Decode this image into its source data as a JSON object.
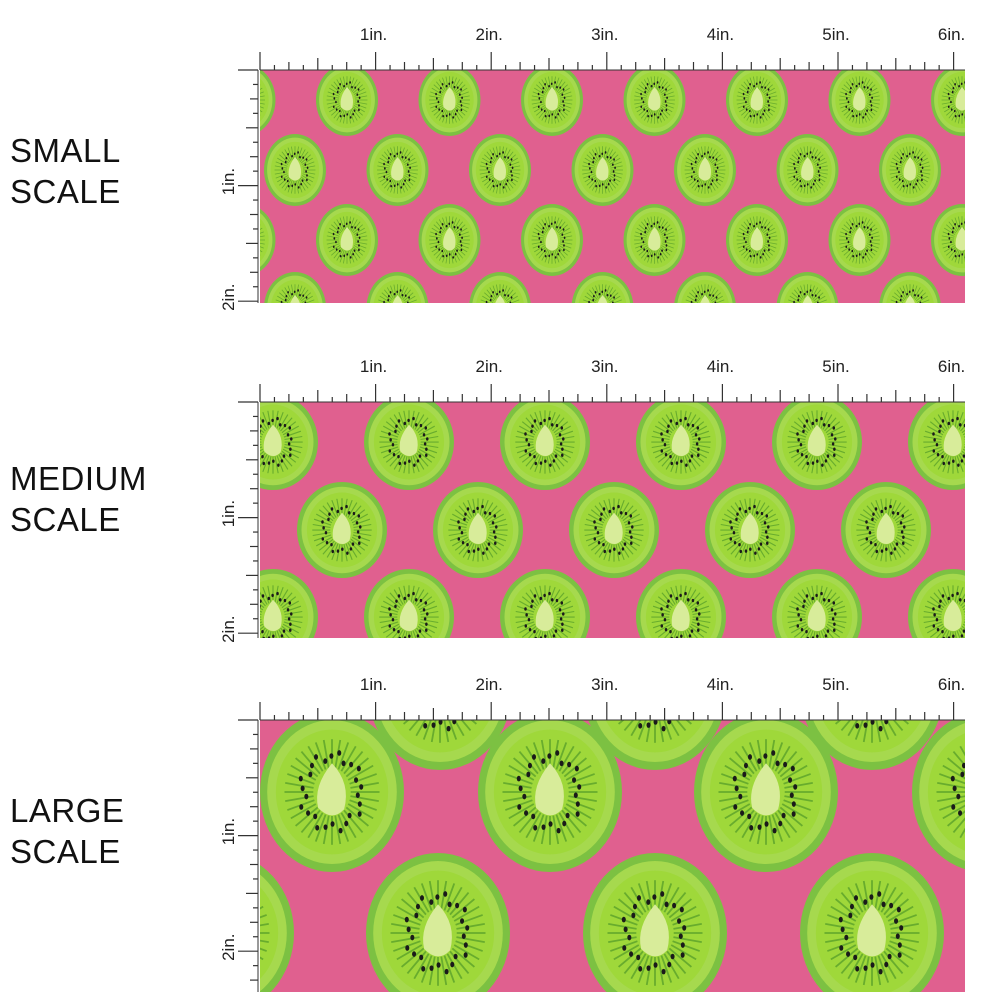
{
  "sections": [
    {
      "id": "small",
      "label_line1": "SMALL",
      "label_line2": "SCALE"
    },
    {
      "id": "medium",
      "label_line1": "MEDIUM",
      "label_line2": "SCALE"
    },
    {
      "id": "large",
      "label_line1": "LARGE",
      "label_line2": "SCALE"
    }
  ],
  "ruler": {
    "horizontal_labels": [
      "1in.",
      "2in.",
      "3in.",
      "4in.",
      "5in.",
      "6in."
    ],
    "vertical_labels": [
      "1in.",
      "2in."
    ]
  },
  "colors": {
    "background_pink": "#e0608f",
    "kiwi_outer": "#7cc142",
    "kiwi_ring": "#a6d94e",
    "kiwi_flesh": "#9fd83a",
    "kiwi_core": "#d8ec9a",
    "kiwi_seed": "#1a1a1a",
    "ray": "#5aa12a"
  }
}
